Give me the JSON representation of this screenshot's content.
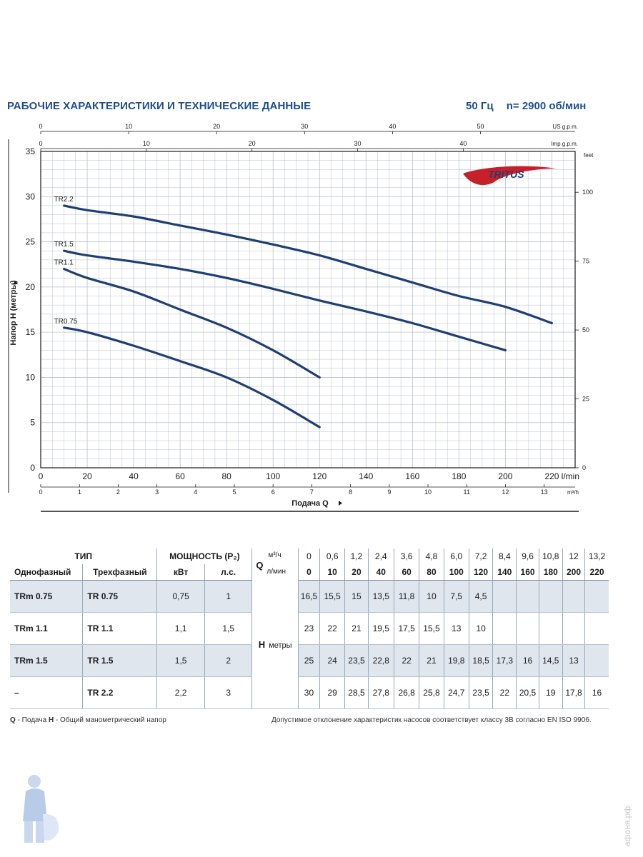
{
  "header": {
    "title": "РАБОЧИЕ ХАРАКТЕРИСТИКИ И ТЕХНИЧЕСКИЕ ДАННЫЕ",
    "frequency": "50 Гц",
    "speed": "n= 2900 об/мин"
  },
  "chart_data": {
    "type": "line",
    "brand": "TRITUS",
    "ylabel": "Напор H (метры)",
    "xlabel": "Подача Q",
    "ylim": [
      0,
      35
    ],
    "xlim": [
      0,
      230
    ],
    "grid": true,
    "y_ticks": [
      "0",
      "5",
      "10",
      "15",
      "20",
      "25",
      "30",
      "35"
    ],
    "x_ticks_lmin": [
      "0",
      "20",
      "40",
      "60",
      "80",
      "100",
      "120",
      "140",
      "160",
      "180",
      "200",
      "220"
    ],
    "x_unit_lmin": "l/min",
    "x_ticks_m3h": [
      "0",
      "1",
      "2",
      "3",
      "4",
      "5",
      "6",
      "7",
      "8",
      "9",
      "10",
      "11",
      "12",
      "13"
    ],
    "x_unit_m3h": "m³/h",
    "top_ticks_us": [
      "0",
      "10",
      "20",
      "30",
      "40",
      "50"
    ],
    "top_unit_us": "US g.p.m.",
    "top_ticks_imp": [
      "0",
      "10",
      "20",
      "30",
      "40"
    ],
    "top_unit_imp": "Imp g.p.m.",
    "right_ticks_feet": [
      "0",
      "25",
      "50",
      "75",
      "100"
    ],
    "right_unit_feet": "feet",
    "series_color": "#1f3f73",
    "series": [
      {
        "name": "TR2.2",
        "x": [
          10,
          20,
          40,
          60,
          80,
          100,
          120,
          140,
          160,
          180,
          200,
          220
        ],
        "y": [
          29,
          28.5,
          27.8,
          26.8,
          25.8,
          24.7,
          23.5,
          22,
          20.5,
          19,
          17.8,
          16
        ]
      },
      {
        "name": "TR1.5",
        "x": [
          10,
          20,
          40,
          60,
          80,
          100,
          120,
          140,
          160,
          180,
          200
        ],
        "y": [
          24,
          23.5,
          22.8,
          22,
          21,
          19.8,
          18.5,
          17.3,
          16,
          14.5,
          13
        ]
      },
      {
        "name": "TR1.1",
        "x": [
          10,
          20,
          40,
          60,
          80,
          100,
          120
        ],
        "y": [
          22,
          21,
          19.5,
          17.5,
          15.5,
          13,
          10
        ]
      },
      {
        "name": "TR0.75",
        "x": [
          10,
          20,
          40,
          60,
          80,
          100,
          120
        ],
        "y": [
          15.5,
          15,
          13.5,
          11.8,
          10,
          7.5,
          4.5
        ]
      }
    ]
  },
  "table": {
    "type_header": "ТИП",
    "power_header": "МОЩНОСТЬ (P₂)",
    "single_phase": "Однофазный",
    "three_phase": "Трехфазный",
    "kw": "кВт",
    "hp": "л.с.",
    "q_label": "Q",
    "q_unit_m3": "м³/ч",
    "q_unit_l": "л/мин",
    "h_label": "H",
    "h_unit": "метры",
    "q_m3": [
      "0",
      "0,6",
      "1,2",
      "2,4",
      "3,6",
      "4,8",
      "6,0",
      "7,2",
      "8,4",
      "9,6",
      "10,8",
      "12",
      "13,2"
    ],
    "q_l": [
      "0",
      "10",
      "20",
      "40",
      "60",
      "80",
      "100",
      "120",
      "140",
      "160",
      "180",
      "200",
      "220"
    ],
    "rows": [
      {
        "single": "TRm 0.75",
        "three": "TR 0.75",
        "kw": "0,75",
        "hp": "1",
        "h": [
          "16,5",
          "15,5",
          "15",
          "13,5",
          "11,8",
          "10",
          "7,5",
          "4,5",
          "",
          "",
          "",
          "",
          ""
        ]
      },
      {
        "single": "TRm 1.1",
        "three": "TR 1.1",
        "kw": "1,1",
        "hp": "1,5",
        "h": [
          "23",
          "22",
          "21",
          "19,5",
          "17,5",
          "15,5",
          "13",
          "10",
          "",
          "",
          "",
          "",
          ""
        ]
      },
      {
        "single": "TRm 1.5",
        "three": "TR 1.5",
        "kw": "1,5",
        "hp": "2",
        "h": [
          "25",
          "24",
          "23,5",
          "22,8",
          "22",
          "21",
          "19,8",
          "18,5",
          "17,3",
          "16",
          "14,5",
          "13",
          ""
        ]
      },
      {
        "single": "–",
        "three": "TR 2.2",
        "kw": "2,2",
        "hp": "3",
        "h": [
          "30",
          "29",
          "28,5",
          "27,8",
          "26,8",
          "25,8",
          "24,7",
          "23,5",
          "22",
          "20,5",
          "19",
          "17,8",
          "16"
        ]
      }
    ]
  },
  "footer": {
    "q_abbr": "Q",
    "q_desc": " - Подача  ",
    "h_abbr": "H",
    "h_desc": " - Общий манометрический напор",
    "tolerance": "Допустимое отклонение характеристик насосов соответствует классу 3B согласно EN ISO 9906."
  },
  "watermark": "афоня.рф"
}
